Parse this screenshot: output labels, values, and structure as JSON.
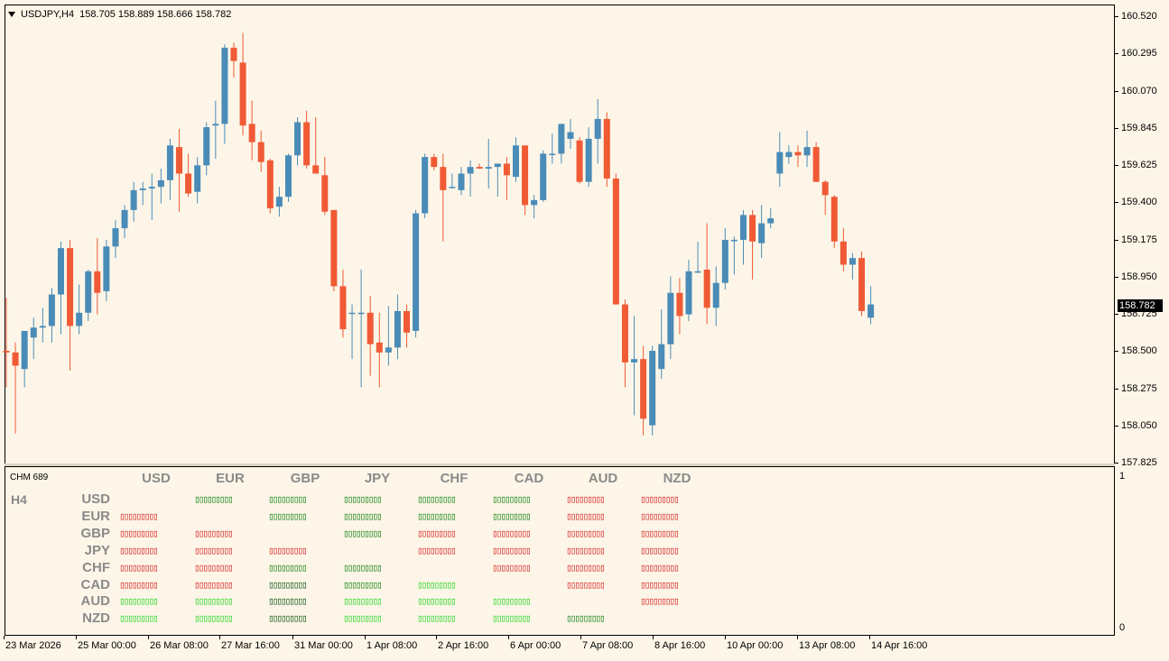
{
  "chart_header": {
    "symbol": "USDJPY,H4",
    "ohlc": "158.705 158.889 158.666 158.782"
  },
  "current_price": "158.782",
  "price_axis": [
    "160.520",
    "160.295",
    "160.070",
    "159.845",
    "159.625",
    "159.400",
    "159.175",
    "158.950",
    "158.725",
    "158.500",
    "158.275",
    "158.050",
    "157.825"
  ],
  "colors": {
    "bull": "#4a8bb7",
    "bear": "#f05a35",
    "background": "#fdf6e8",
    "strong_up": "#0b7d0b",
    "weak_up": "#1fd31f",
    "down": "#d41d1d"
  },
  "indicator": {
    "name": "CHM 689",
    "timeframe": "H4",
    "columns": [
      "USD",
      "EUR",
      "GBP",
      "JPY",
      "CHF",
      "CAD",
      "AUD",
      "NZD"
    ],
    "rows": [
      "USD",
      "EUR",
      "GBP",
      "JPY",
      "CHF",
      "CAD",
      "AUD",
      "NZD"
    ],
    "cell_glyph": "▯▯▯▯▯▯▯▯▯",
    "matrix": [
      [
        "",
        "green",
        "green",
        "green",
        "green",
        "green",
        "red",
        "red"
      ],
      [
        "red",
        "",
        "green",
        "green",
        "green",
        "green",
        "red",
        "red"
      ],
      [
        "red",
        "red",
        "",
        "green",
        "red",
        "red",
        "red",
        "red"
      ],
      [
        "red",
        "red",
        "red",
        "",
        "red",
        "red",
        "red",
        "red"
      ],
      [
        "red",
        "red",
        "green",
        "green",
        "",
        "red",
        "red",
        "red"
      ],
      [
        "red",
        "red",
        "dark",
        "green",
        "lime",
        "",
        "red",
        "red"
      ],
      [
        "lime",
        "lime",
        "dark",
        "lime",
        "lime",
        "lime",
        "",
        "red"
      ],
      [
        "lime",
        "lime",
        "dark",
        "lime",
        "lime",
        "lime",
        "green",
        ""
      ]
    ],
    "scale_top": "1",
    "scale_bottom": "0"
  },
  "time_axis": [
    "23 Mar 2026",
    "25 Mar 00:00",
    "26 Mar 08:00",
    "27 Mar 16:00",
    "31 Mar 00:00",
    "1 Apr 08:00",
    "2 Apr 16:00",
    "6 Apr 00:00",
    "7 Apr 08:00",
    "8 Apr 16:00",
    "10 Apr 00:00",
    "13 Apr 08:00",
    "14 Apr 16:00"
  ],
  "chart_data": {
    "type": "candlestick",
    "ylim": [
      157.825,
      160.52
    ],
    "candles": [
      {
        "o": 158.5,
        "h": 158.82,
        "l": 158.28,
        "c": 158.49
      },
      {
        "o": 158.49,
        "h": 158.55,
        "l": 158.0,
        "c": 158.41
      },
      {
        "o": 158.39,
        "h": 158.62,
        "l": 158.28,
        "c": 158.62
      },
      {
        "o": 158.58,
        "h": 158.7,
        "l": 158.45,
        "c": 158.64
      },
      {
        "o": 158.64,
        "h": 158.76,
        "l": 158.55,
        "c": 158.65
      },
      {
        "o": 158.65,
        "h": 158.88,
        "l": 158.55,
        "c": 158.84
      },
      {
        "o": 158.84,
        "h": 159.16,
        "l": 158.6,
        "c": 159.12
      },
      {
        "o": 159.12,
        "h": 159.17,
        "l": 158.38,
        "c": 158.65
      },
      {
        "o": 158.65,
        "h": 158.9,
        "l": 158.6,
        "c": 158.73
      },
      {
        "o": 158.73,
        "h": 158.99,
        "l": 158.68,
        "c": 158.98
      },
      {
        "o": 158.98,
        "h": 159.18,
        "l": 158.72,
        "c": 158.85
      },
      {
        "o": 158.86,
        "h": 159.17,
        "l": 158.8,
        "c": 159.13
      },
      {
        "o": 159.13,
        "h": 159.29,
        "l": 159.06,
        "c": 159.24
      },
      {
        "o": 159.24,
        "h": 159.38,
        "l": 159.18,
        "c": 159.35
      },
      {
        "o": 159.35,
        "h": 159.52,
        "l": 159.28,
        "c": 159.47
      },
      {
        "o": 159.47,
        "h": 159.52,
        "l": 159.38,
        "c": 159.48
      },
      {
        "o": 159.48,
        "h": 159.57,
        "l": 159.29,
        "c": 159.49
      },
      {
        "o": 159.49,
        "h": 159.6,
        "l": 159.39,
        "c": 159.53
      },
      {
        "o": 159.53,
        "h": 159.78,
        "l": 159.41,
        "c": 159.74
      },
      {
        "o": 159.73,
        "h": 159.84,
        "l": 159.34,
        "c": 159.57
      },
      {
        "o": 159.57,
        "h": 159.69,
        "l": 159.43,
        "c": 159.45
      },
      {
        "o": 159.46,
        "h": 159.67,
        "l": 159.39,
        "c": 159.62
      },
      {
        "o": 159.62,
        "h": 159.88,
        "l": 159.56,
        "c": 159.85
      },
      {
        "o": 159.86,
        "h": 160.01,
        "l": 159.66,
        "c": 159.87
      },
      {
        "o": 159.87,
        "h": 160.35,
        "l": 159.75,
        "c": 160.33
      },
      {
        "o": 160.33,
        "h": 160.36,
        "l": 160.15,
        "c": 160.25
      },
      {
        "o": 160.24,
        "h": 160.42,
        "l": 159.8,
        "c": 159.86
      },
      {
        "o": 159.87,
        "h": 160.01,
        "l": 159.65,
        "c": 159.76
      },
      {
        "o": 159.76,
        "h": 159.83,
        "l": 159.58,
        "c": 159.64
      },
      {
        "o": 159.65,
        "h": 159.66,
        "l": 159.33,
        "c": 159.36
      },
      {
        "o": 159.37,
        "h": 159.49,
        "l": 159.31,
        "c": 159.43
      },
      {
        "o": 159.43,
        "h": 159.69,
        "l": 159.4,
        "c": 159.68
      },
      {
        "o": 159.68,
        "h": 159.91,
        "l": 159.62,
        "c": 159.88
      },
      {
        "o": 159.88,
        "h": 159.95,
        "l": 159.6,
        "c": 159.62
      },
      {
        "o": 159.62,
        "h": 159.91,
        "l": 159.57,
        "c": 159.57
      },
      {
        "o": 159.56,
        "h": 159.67,
        "l": 159.32,
        "c": 159.34
      },
      {
        "o": 159.35,
        "h": 159.35,
        "l": 158.86,
        "c": 158.89
      },
      {
        "o": 158.89,
        "h": 158.99,
        "l": 158.58,
        "c": 158.63
      },
      {
        "o": 158.73,
        "h": 158.78,
        "l": 158.45,
        "c": 158.73
      },
      {
        "o": 158.73,
        "h": 158.99,
        "l": 158.28,
        "c": 158.73
      },
      {
        "o": 158.73,
        "h": 158.83,
        "l": 158.35,
        "c": 158.54
      },
      {
        "o": 158.55,
        "h": 158.73,
        "l": 158.28,
        "c": 158.49
      },
      {
        "o": 158.49,
        "h": 158.77,
        "l": 158.41,
        "c": 158.52
      },
      {
        "o": 158.52,
        "h": 158.84,
        "l": 158.45,
        "c": 158.74
      },
      {
        "o": 158.74,
        "h": 158.78,
        "l": 158.52,
        "c": 158.61
      },
      {
        "o": 158.62,
        "h": 159.35,
        "l": 158.58,
        "c": 159.33
      },
      {
        "o": 159.33,
        "h": 159.69,
        "l": 159.3,
        "c": 159.67
      },
      {
        "o": 159.67,
        "h": 159.69,
        "l": 159.59,
        "c": 159.61
      },
      {
        "o": 159.61,
        "h": 159.69,
        "l": 159.16,
        "c": 159.47
      },
      {
        "o": 159.49,
        "h": 159.57,
        "l": 159.48,
        "c": 159.49
      },
      {
        "o": 159.47,
        "h": 159.61,
        "l": 159.44,
        "c": 159.57
      },
      {
        "o": 159.57,
        "h": 159.65,
        "l": 159.43,
        "c": 159.61
      },
      {
        "o": 159.61,
        "h": 159.63,
        "l": 159.6,
        "c": 159.6
      },
      {
        "o": 159.6,
        "h": 159.78,
        "l": 159.48,
        "c": 159.61
      },
      {
        "o": 159.61,
        "h": 159.63,
        "l": 159.43,
        "c": 159.63
      },
      {
        "o": 159.63,
        "h": 159.67,
        "l": 159.41,
        "c": 159.56
      },
      {
        "o": 159.55,
        "h": 159.79,
        "l": 159.52,
        "c": 159.74
      },
      {
        "o": 159.74,
        "h": 159.74,
        "l": 159.32,
        "c": 159.38
      },
      {
        "o": 159.38,
        "h": 159.44,
        "l": 159.3,
        "c": 159.41
      },
      {
        "o": 159.41,
        "h": 159.71,
        "l": 159.4,
        "c": 159.69
      },
      {
        "o": 159.69,
        "h": 159.81,
        "l": 159.63,
        "c": 159.69
      },
      {
        "o": 159.69,
        "h": 159.87,
        "l": 159.63,
        "c": 159.87
      },
      {
        "o": 159.78,
        "h": 159.9,
        "l": 159.72,
        "c": 159.82
      },
      {
        "o": 159.77,
        "h": 159.79,
        "l": 159.51,
        "c": 159.52
      },
      {
        "o": 159.52,
        "h": 159.85,
        "l": 159.49,
        "c": 159.78
      },
      {
        "o": 159.78,
        "h": 160.02,
        "l": 159.63,
        "c": 159.9
      },
      {
        "o": 159.9,
        "h": 159.94,
        "l": 159.49,
        "c": 159.54
      },
      {
        "o": 159.54,
        "h": 159.57,
        "l": 158.79,
        "c": 158.78
      },
      {
        "o": 158.78,
        "h": 158.81,
        "l": 158.28,
        "c": 158.43
      },
      {
        "o": 158.43,
        "h": 158.71,
        "l": 158.11,
        "c": 158.45
      },
      {
        "o": 158.45,
        "h": 158.53,
        "l": 157.99,
        "c": 158.09
      },
      {
        "o": 158.05,
        "h": 158.53,
        "l": 157.99,
        "c": 158.5
      },
      {
        "o": 158.39,
        "h": 158.75,
        "l": 158.33,
        "c": 158.54
      },
      {
        "o": 158.54,
        "h": 158.95,
        "l": 158.45,
        "c": 158.85
      },
      {
        "o": 158.85,
        "h": 158.94,
        "l": 158.6,
        "c": 158.71
      },
      {
        "o": 158.72,
        "h": 159.05,
        "l": 158.68,
        "c": 158.98
      },
      {
        "o": 158.98,
        "h": 159.16,
        "l": 158.97,
        "c": 158.98
      },
      {
        "o": 158.99,
        "h": 159.27,
        "l": 158.66,
        "c": 158.76
      },
      {
        "o": 158.76,
        "h": 159.01,
        "l": 158.65,
        "c": 158.91
      },
      {
        "o": 158.91,
        "h": 159.24,
        "l": 158.87,
        "c": 159.17
      },
      {
        "o": 159.17,
        "h": 159.19,
        "l": 158.96,
        "c": 159.17
      },
      {
        "o": 159.17,
        "h": 159.35,
        "l": 159.02,
        "c": 159.32
      },
      {
        "o": 159.32,
        "h": 159.35,
        "l": 158.93,
        "c": 159.16
      },
      {
        "o": 159.15,
        "h": 159.38,
        "l": 159.06,
        "c": 159.27
      },
      {
        "o": 159.27,
        "h": 159.36,
        "l": 159.24,
        "c": 159.3
      },
      {
        "o": 159.57,
        "h": 159.82,
        "l": 159.49,
        "c": 159.7
      },
      {
        "o": 159.67,
        "h": 159.74,
        "l": 159.63,
        "c": 159.7
      },
      {
        "o": 159.7,
        "h": 159.74,
        "l": 159.61,
        "c": 159.68
      },
      {
        "o": 159.68,
        "h": 159.83,
        "l": 159.61,
        "c": 159.73
      },
      {
        "o": 159.73,
        "h": 159.76,
        "l": 159.52,
        "c": 159.52
      },
      {
        "o": 159.52,
        "h": 159.53,
        "l": 159.32,
        "c": 159.44
      },
      {
        "o": 159.43,
        "h": 159.44,
        "l": 159.12,
        "c": 159.16
      },
      {
        "o": 159.16,
        "h": 159.24,
        "l": 158.98,
        "c": 159.02
      },
      {
        "o": 159.02,
        "h": 159.09,
        "l": 158.93,
        "c": 159.06
      },
      {
        "o": 159.06,
        "h": 159.1,
        "l": 158.71,
        "c": 158.74
      },
      {
        "o": 158.7,
        "h": 158.89,
        "l": 158.66,
        "c": 158.78
      }
    ]
  }
}
